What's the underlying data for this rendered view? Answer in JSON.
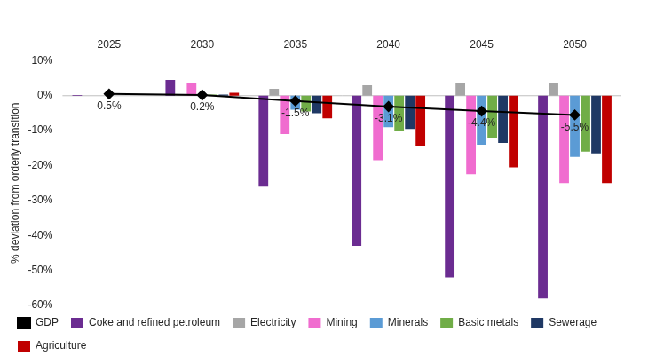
{
  "chart_data": {
    "type": "bar",
    "y_label": "% deviation from orderly transition",
    "categories": [
      "2025",
      "2030",
      "2035",
      "2040",
      "2045",
      "2050"
    ],
    "ylim": [
      -60,
      10
    ],
    "yticks": [
      {
        "value": -60,
        "label": "-60%"
      },
      {
        "value": -50,
        "label": "-50%"
      },
      {
        "value": -40,
        "label": "-40%"
      },
      {
        "value": -30,
        "label": "-30%"
      },
      {
        "value": -20,
        "label": "-20%"
      },
      {
        "value": -10,
        "label": "-10%"
      },
      {
        "value": 0,
        "label": "0%"
      },
      {
        "value": 10,
        "label": "10%"
      }
    ],
    "grid": false,
    "legend": "bottom",
    "series": [
      {
        "name": "Coke and refined petroleum",
        "color": "#6b2c91",
        "values": [
          0.2,
          4.5,
          -26,
          -43,
          -52,
          -58
        ]
      },
      {
        "name": "Electricity",
        "color": "#a6a6a6",
        "values": [
          0,
          0.3,
          2,
          3,
          3.5,
          3.5
        ]
      },
      {
        "name": "Mining",
        "color": "#f06ccf",
        "values": [
          0,
          3.5,
          -11,
          -18.5,
          -22.5,
          -25
        ]
      },
      {
        "name": "Minerals",
        "color": "#5b9bd5",
        "values": [
          0,
          0.2,
          -4,
          -9,
          -14,
          -17.5
        ]
      },
      {
        "name": "Basic metals",
        "color": "#70ad47",
        "values": [
          0,
          0.3,
          -4.5,
          -10,
          -12,
          -16
        ]
      },
      {
        "name": "Sewerage",
        "color": "#1f3864",
        "values": [
          0,
          0.3,
          -5,
          -9.5,
          -13.5,
          -16.5
        ]
      },
      {
        "name": "Agriculture",
        "color": "#c00000",
        "values": [
          0,
          0.8,
          -6.5,
          -14.5,
          -20.5,
          -25
        ]
      },
      {
        "name": "GDP",
        "color": "#000000",
        "type": "line",
        "marker": "diamond",
        "data_labels": true,
        "values": [
          0.5,
          0.2,
          -1.5,
          -3.1,
          -4.4,
          -5.5
        ],
        "value_labels": [
          "0.5%",
          "0.2%",
          "-1.5%",
          "-3.1%",
          "-4.4%",
          "-5.5%"
        ]
      }
    ]
  }
}
